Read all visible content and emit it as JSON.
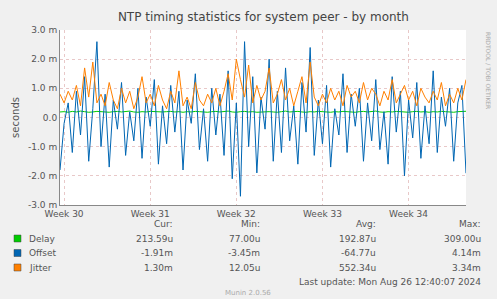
{
  "chart_data": {
    "type": "line",
    "title": "NTP timing statistics for system peer - by month",
    "y_label": "seconds",
    "categories": [
      null,
      "Week 30",
      null,
      null,
      null,
      null,
      null,
      null,
      null,
      null,
      null,
      null,
      null,
      null,
      null,
      null,
      null,
      null,
      null,
      null,
      null,
      null,
      "Week 31",
      null,
      null,
      null,
      null,
      null,
      null,
      null,
      null,
      null,
      null,
      null,
      null,
      null,
      null,
      null,
      null,
      null,
      null,
      null,
      null,
      "Week 32",
      null,
      null,
      null,
      null,
      null,
      null,
      null,
      null,
      null,
      null,
      null,
      null,
      null,
      null,
      null,
      null,
      null,
      null,
      null,
      null,
      "Week 33",
      null,
      null,
      null,
      null,
      null,
      null,
      null,
      null,
      null,
      null,
      null,
      null,
      null,
      null,
      null,
      null,
      null,
      null,
      null,
      null,
      "Week 34",
      null,
      null,
      null,
      null,
      null,
      null,
      null,
      null,
      null,
      null,
      null,
      null,
      null,
      null
    ],
    "ylim": [
      -0.003,
      0.003
    ],
    "yticks": [
      {
        "value": -0.003,
        "label": "-3.0 m"
      },
      {
        "value": -0.002,
        "label": "-2.0 m"
      },
      {
        "value": -0.001,
        "label": "-1.0 m"
      },
      {
        "value": 0,
        "label": "0.0"
      },
      {
        "value": 0.001,
        "label": "1.0 m"
      },
      {
        "value": 0.002,
        "label": "2.0 m"
      },
      {
        "value": 0.003,
        "label": "3.0 m"
      }
    ],
    "grid": true,
    "stats_headers": [
      "Cur:",
      "Min:",
      "Avg:",
      "Max:"
    ],
    "series": [
      {
        "name": "Delay",
        "color": "#00cc00",
        "stats": [
          "213.59u",
          "77.00u",
          "192.87u",
          "309.00u"
        ],
        "values": [
          0.00019,
          0.0002,
          0.00018,
          0.00021,
          0.00019,
          0.00022,
          0.0002,
          0.00018,
          0.00019,
          0.00021,
          0.0002,
          0.00019,
          0.00018,
          0.0002,
          0.00021,
          0.00019,
          0.0002,
          0.00022,
          0.00019,
          0.00018,
          0.0002,
          0.00019,
          0.00021,
          0.0002,
          0.00018,
          0.00019,
          0.0002,
          0.00021,
          0.00019,
          0.0002,
          0.00018,
          0.0002,
          0.00019,
          0.00021,
          0.0002,
          0.00019,
          0.00018,
          0.0002,
          0.00021,
          0.00019,
          0.0002,
          0.00022,
          0.00019,
          0.00018,
          0.0002,
          0.00021,
          0.00019,
          0.0002,
          0.00018,
          0.00019,
          0.00021,
          0.0002,
          0.00019,
          0.00018,
          0.0002,
          0.00022,
          0.00019,
          0.0002,
          0.00021,
          0.00019,
          0.00018,
          0.0002,
          0.00019,
          0.00021,
          0.0002,
          0.00019,
          0.00018,
          0.0002,
          0.00019,
          0.00021,
          0.0002,
          0.00019,
          0.00018,
          0.0002,
          0.00021,
          0.00019,
          0.0002,
          0.00022,
          0.00019,
          0.00018,
          0.0002,
          0.00019,
          0.00021,
          0.0002,
          0.00019,
          0.00018,
          0.0002,
          0.00021,
          0.00019,
          0.0002,
          0.00018,
          0.0002,
          0.00019,
          0.00021,
          0.0002,
          0.00019,
          0.00018,
          0.0002,
          0.00021,
          0.00021359
        ]
      },
      {
        "name": "Offset",
        "color": "#0066b3",
        "stats": [
          "-1.91m",
          "-3.45m",
          "-64.77u",
          "4.14m"
        ],
        "values": [
          -0.0018,
          -0.0002,
          0.0005,
          -0.0012,
          0.0009,
          -0.0006,
          0.0014,
          -0.0015,
          0.0003,
          0.0026,
          -0.001,
          0.0008,
          -0.0017,
          0.0006,
          -0.0004,
          0.0012,
          -0.0013,
          0.0002,
          -0.0008,
          0.001,
          -0.0014,
          0.0007,
          -0.0003,
          0.0013,
          -0.0016,
          0.0004,
          -0.0009,
          0.0011,
          -0.0005,
          0.0009,
          -0.0018,
          0.0006,
          -0.0002,
          0.0015,
          -0.0011,
          0.0003,
          -0.0015,
          0.001,
          -0.0006,
          0.0008,
          -0.0013,
          0.0016,
          -0.0021,
          0.0005,
          -0.0027,
          0.0026,
          -0.001,
          0.0014,
          -0.0019,
          0.0007,
          -0.0004,
          0.002,
          -0.0015,
          0.0009,
          -0.0012,
          0.0017,
          -0.0008,
          0.0004,
          -0.0016,
          0.0012,
          -0.0005,
          0.0024,
          -0.0013,
          0.0006,
          -0.0009,
          0.0011,
          -0.0017,
          0.0003,
          -0.0006,
          0.0015,
          -0.0012,
          0.0008,
          -0.0003,
          0.001,
          -0.0015,
          0.0005,
          -0.0008,
          0.0013,
          -0.0011,
          0.0002,
          -0.0016,
          0.0014,
          -0.0005,
          0.0009,
          -0.002,
          0.0006,
          -0.0007,
          0.0012,
          -0.0014,
          0.0004,
          -0.0009,
          0.0016,
          -0.0012,
          0.0007,
          -0.0003,
          0.001,
          -0.0015,
          0.0005,
          0.0011,
          -0.00191
        ]
      },
      {
        "name": "Jitter",
        "color": "#ff8000",
        "stats": [
          "1.30m",
          "12.05u",
          "552.34u",
          "3.34m"
        ],
        "values": [
          0.0008,
          0.0005,
          0.0009,
          0.0006,
          0.0011,
          0.0004,
          0.0017,
          0.0007,
          0.0019,
          0.0005,
          0.0008,
          0.0004,
          0.0012,
          0.0006,
          0.0003,
          0.001,
          0.0005,
          0.0009,
          0.0003,
          0.0007,
          0.0014,
          0.0005,
          0.0008,
          0.0004,
          0.0011,
          0.0006,
          0.0003,
          0.0009,
          0.0005,
          0.0016,
          0.0004,
          0.0007,
          0.0003,
          0.0012,
          0.0006,
          0.0004,
          0.0008,
          0.0005,
          0.001,
          0.0004,
          0.0009,
          0.0015,
          0.0006,
          0.002,
          0.0013,
          0.0007,
          0.0018,
          0.0005,
          0.0011,
          0.0006,
          0.0009,
          0.0017,
          0.0005,
          0.0008,
          0.0013,
          0.0006,
          0.001,
          0.0004,
          0.0009,
          0.0014,
          0.0005,
          0.0019,
          0.0007,
          0.0004,
          0.0008,
          0.0005,
          0.001,
          0.0006,
          0.0009,
          0.0004,
          0.0011,
          0.0007,
          0.0009,
          0.0005,
          0.0012,
          0.0006,
          0.001,
          0.0008,
          0.0004,
          0.0009,
          0.0006,
          0.0013,
          0.0005,
          0.0008,
          0.0011,
          0.0006,
          0.0009,
          0.0004,
          0.001,
          0.0007,
          0.0005,
          0.0009,
          0.0006,
          0.0012,
          0.0004,
          0.0008,
          0.0005,
          0.001,
          0.0006,
          0.0013
        ]
      }
    ],
    "last_update": "Last update: Mon Aug 26 12:40:07 2024",
    "footer": "Munin 2.0.56",
    "side_text": "RRDTOOL / TOBI OETIKER"
  }
}
